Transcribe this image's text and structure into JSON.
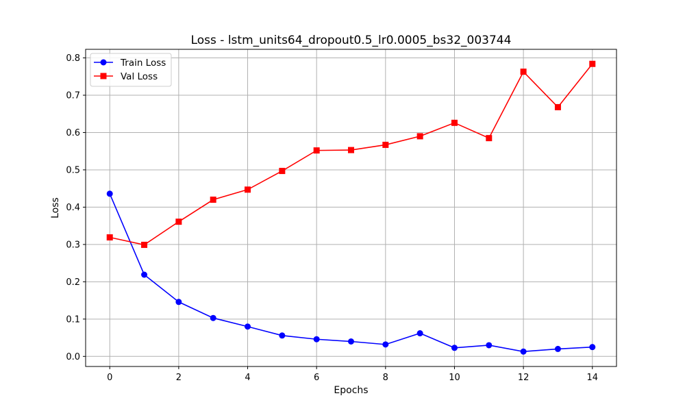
{
  "chart_data": {
    "type": "line",
    "title": "Loss - lstm_units64_dropout0.5_lr0.0005_bs32_003744",
    "xlabel": "Epochs",
    "ylabel": "Loss",
    "xlim": [
      -0.7,
      14.7
    ],
    "ylim": [
      -0.027,
      0.823
    ],
    "x_ticks": [
      0,
      2,
      4,
      6,
      8,
      10,
      12,
      14
    ],
    "y_ticks": [
      0.0,
      0.1,
      0.2,
      0.3,
      0.4,
      0.5,
      0.6,
      0.7,
      0.8
    ],
    "grid": true,
    "legend_position": "upper left",
    "x": [
      0,
      1,
      2,
      3,
      4,
      5,
      6,
      7,
      8,
      9,
      10,
      11,
      12,
      13,
      14
    ],
    "series": [
      {
        "name": "Train Loss",
        "color": "#0000ff",
        "marker": "circle",
        "values": [
          0.436,
          0.219,
          0.146,
          0.103,
          0.08,
          0.056,
          0.046,
          0.04,
          0.032,
          0.062,
          0.023,
          0.03,
          0.013,
          0.02,
          0.025
        ]
      },
      {
        "name": "Val Loss",
        "color": "#ff0000",
        "marker": "square",
        "values": [
          0.319,
          0.299,
          0.361,
          0.42,
          0.447,
          0.497,
          0.552,
          0.553,
          0.567,
          0.59,
          0.626,
          0.585,
          0.763,
          0.668,
          0.784
        ]
      }
    ]
  }
}
